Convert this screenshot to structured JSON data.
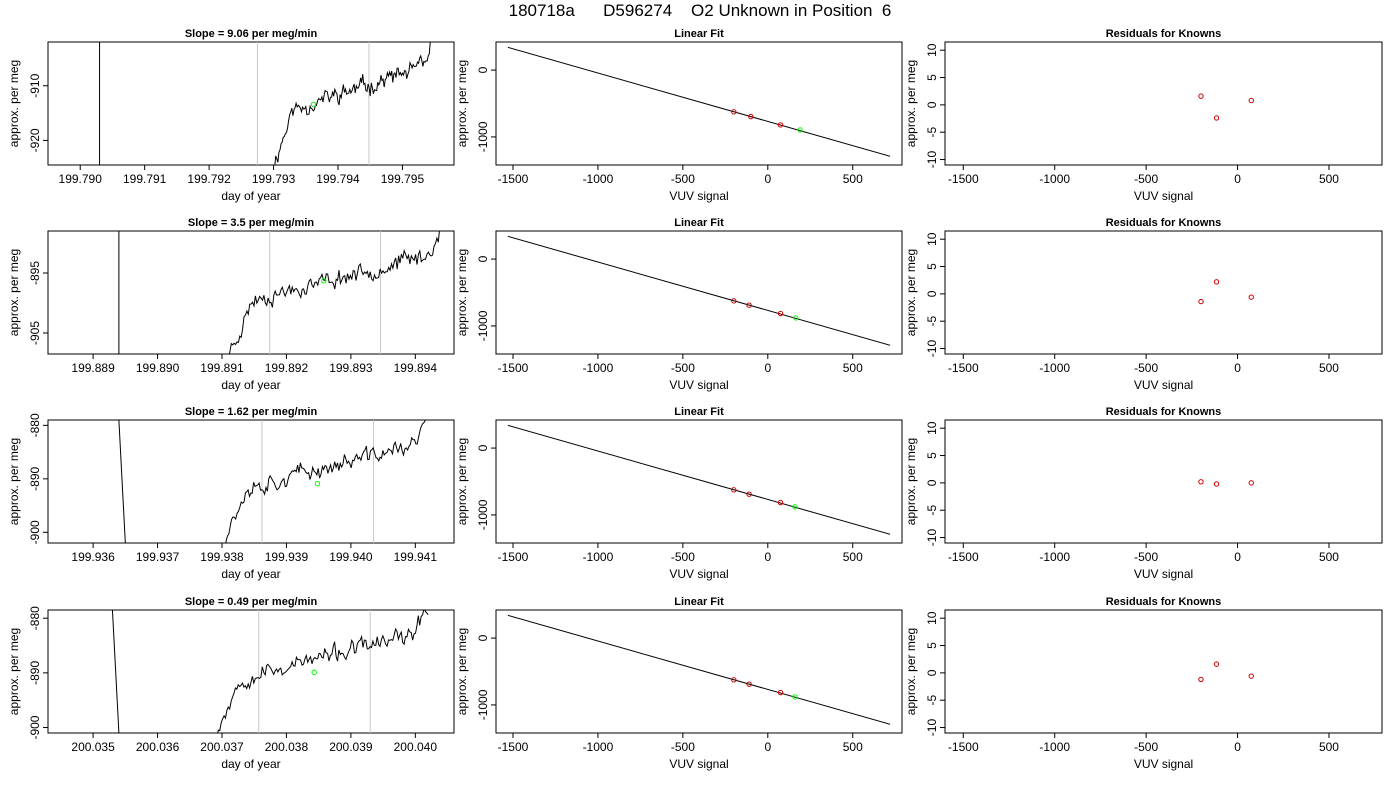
{
  "page": {
    "title": "180718a      D596274    O2 Unknown in Position  6"
  },
  "colors": {
    "frame": "#000000",
    "trace": "#000000",
    "marker_line": "#c8c8c8",
    "unknown_point": "#00ff00",
    "known_point": "#cd0000"
  },
  "chart_data": [
    {
      "type": "line",
      "name": "trace-row-1",
      "title": "Slope =  9.06  per meg/min",
      "xlabel": "day of year",
      "ylabel": "approx. per meg",
      "xlim": [
        199.7895,
        199.7958
      ],
      "ylim": [
        -924.5,
        -902.0
      ],
      "xticks": [
        199.79,
        199.791,
        199.792,
        199.793,
        199.794,
        199.795
      ],
      "xtick_labels": [
        "199.790",
        "199.791",
        "199.792",
        "199.793",
        "199.794",
        "199.795"
      ],
      "yticks": [
        -920,
        -910
      ],
      "ytick_labels": [
        "-920",
        "-910"
      ],
      "segment_high_x": [
        199.7903,
        199.7903
      ],
      "segment_high_y": [
        -902.0,
        -924.5
      ],
      "trace_start": [
        199.793,
        -924.5
      ],
      "trace_end": [
        199.7955,
        -902.0
      ],
      "trace_seed": 11,
      "vlines": [
        199.79275,
        199.79448
      ],
      "unknown_point": {
        "x": 199.79362,
        "y": -913.4
      }
    },
    {
      "type": "scatter",
      "name": "fit-row-1",
      "title": "Linear Fit",
      "xlabel": "VUV signal",
      "ylabel": "approx. per meg",
      "xlim": [
        -1600,
        790
      ],
      "ylim": [
        -1420,
        420
      ],
      "xticks": [
        -1500,
        -1000,
        -500,
        0,
        500
      ],
      "xtick_labels": [
        "-1500",
        "-1000",
        "-500",
        "0",
        "500"
      ],
      "yticks": [
        -1000,
        0
      ],
      "ytick_labels": [
        "-1000",
        "0"
      ],
      "fit_line": {
        "x": [
          -1530,
          720
        ],
        "y": [
          340,
          -1290
        ]
      },
      "knowns": {
        "x": [
          -200,
          -100,
          75
        ],
        "y": [
          -625,
          -695,
          -820
        ]
      },
      "unknown": {
        "x": 190,
        "y": -895
      }
    },
    {
      "type": "scatter",
      "name": "resid-row-1",
      "title": "Residuals for Knowns",
      "xlabel": "VUV signal",
      "ylabel": "approx. per meg",
      "xlim": [
        -1600,
        790
      ],
      "ylim": [
        -11,
        11.5
      ],
      "xticks": [
        -1500,
        -1000,
        -500,
        0,
        500
      ],
      "xtick_labels": [
        "-1500",
        "-1000",
        "-500",
        "0",
        "500"
      ],
      "yticks": [
        -10,
        -5,
        0,
        5,
        10
      ],
      "ytick_labels": [
        "-10",
        "-5",
        "0",
        "5",
        "10"
      ],
      "knowns": {
        "x": [
          -200,
          -115,
          75
        ],
        "y": [
          1.6,
          -2.4,
          0.8
        ]
      }
    },
    {
      "type": "line",
      "name": "trace-row-2",
      "title": "Slope =  3.5  per meg/min",
      "xlabel": "day of year",
      "ylabel": "approx. per meg",
      "xlim": [
        199.8883,
        199.8946
      ],
      "ylim": [
        -908.5,
        -888.0
      ],
      "xticks": [
        199.889,
        199.89,
        199.891,
        199.892,
        199.893,
        199.894
      ],
      "xtick_labels": [
        "199.889",
        "199.890",
        "199.891",
        "199.892",
        "199.893",
        "199.894"
      ],
      "yticks": [
        -905,
        -895
      ],
      "ytick_labels": [
        "-905",
        "-895"
      ],
      "segment_high_x": [
        199.8894,
        199.8894
      ],
      "segment_high_y": [
        -888.0,
        -908.5
      ],
      "trace_start": [
        199.8911,
        -908.5
      ],
      "trace_end": [
        199.8944,
        -888.0
      ],
      "trace_seed": 23,
      "vlines": [
        199.89174,
        199.89346
      ],
      "unknown_point": {
        "x": 199.89258,
        "y": -896.3
      }
    },
    {
      "type": "scatter",
      "name": "fit-row-2",
      "title": "Linear Fit",
      "xlabel": "VUV signal",
      "ylabel": "approx. per meg",
      "xlim": [
        -1600,
        790
      ],
      "ylim": [
        -1420,
        420
      ],
      "xticks": [
        -1500,
        -1000,
        -500,
        0,
        500
      ],
      "xtick_labels": [
        "-1500",
        "-1000",
        "-500",
        "0",
        "500"
      ],
      "yticks": [
        -1000,
        0
      ],
      "ytick_labels": [
        "-1000",
        "0"
      ],
      "fit_line": {
        "x": [
          -1530,
          720
        ],
        "y": [
          340,
          -1290
        ]
      },
      "knowns": {
        "x": [
          -200,
          -110,
          75
        ],
        "y": [
          -625,
          -690,
          -815
        ]
      },
      "unknown": {
        "x": 165,
        "y": -880
      }
    },
    {
      "type": "scatter",
      "name": "resid-row-2",
      "title": "Residuals for Knowns",
      "xlabel": "VUV signal",
      "ylabel": "approx. per meg",
      "xlim": [
        -1600,
        790
      ],
      "ylim": [
        -11,
        11.5
      ],
      "xticks": [
        -1500,
        -1000,
        -500,
        0,
        500
      ],
      "xtick_labels": [
        "-1500",
        "-1000",
        "-500",
        "0",
        "500"
      ],
      "yticks": [
        -10,
        -5,
        0,
        5,
        10
      ],
      "ytick_labels": [
        "-10",
        "-5",
        "0",
        "5",
        "10"
      ],
      "knowns": {
        "x": [
          -200,
          -115,
          75
        ],
        "y": [
          -1.4,
          2.2,
          -0.6
        ]
      }
    },
    {
      "type": "line",
      "name": "trace-row-3",
      "title": "Slope =  1.62  per meg/min",
      "xlabel": "day of year",
      "ylabel": "approx. per meg",
      "xlim": [
        199.9353,
        199.9416
      ],
      "ylim": [
        -902.0,
        -879.0
      ],
      "xticks": [
        199.936,
        199.937,
        199.938,
        199.939,
        199.94,
        199.941
      ],
      "xtick_labels": [
        "199.936",
        "199.937",
        "199.938",
        "199.939",
        "199.940",
        "199.941"
      ],
      "yticks": [
        -900,
        -890,
        -880
      ],
      "ytick_labels": [
        "-900",
        "-890",
        "-880"
      ],
      "segment_high_x": [
        199.9364,
        199.9365
      ],
      "segment_high_y": [
        -879.0,
        -902.0
      ],
      "trace_start": [
        199.938,
        -902.0
      ],
      "trace_end": [
        199.9412,
        -879.0
      ],
      "trace_seed": 37,
      "vlines": [
        199.93862,
        199.94035
      ],
      "unknown_point": {
        "x": 199.93948,
        "y": -890.9
      }
    },
    {
      "type": "scatter",
      "name": "fit-row-3",
      "title": "Linear Fit",
      "xlabel": "VUV signal",
      "ylabel": "approx. per meg",
      "xlim": [
        -1600,
        790
      ],
      "ylim": [
        -1420,
        420
      ],
      "xticks": [
        -1500,
        -1000,
        -500,
        0,
        500
      ],
      "xtick_labels": [
        "-1500",
        "-1000",
        "-500",
        "0",
        "500"
      ],
      "yticks": [
        -1000,
        0
      ],
      "ytick_labels": [
        "-1000",
        "0"
      ],
      "fit_line": {
        "x": [
          -1530,
          720
        ],
        "y": [
          340,
          -1290
        ]
      },
      "knowns": {
        "x": [
          -200,
          -110,
          75
        ],
        "y": [
          -625,
          -690,
          -815
        ]
      },
      "unknown": {
        "x": 160,
        "y": -878
      }
    },
    {
      "type": "scatter",
      "name": "resid-row-3",
      "title": "Residuals for Knowns",
      "xlabel": "VUV signal",
      "ylabel": "approx. per meg",
      "xlim": [
        -1600,
        790
      ],
      "ylim": [
        -11,
        11.5
      ],
      "xticks": [
        -1500,
        -1000,
        -500,
        0,
        500
      ],
      "xtick_labels": [
        "-1500",
        "-1000",
        "-500",
        "0",
        "500"
      ],
      "yticks": [
        -10,
        -5,
        0,
        5,
        10
      ],
      "ytick_labels": [
        "-10",
        "-5",
        "0",
        "5",
        "10"
      ],
      "knowns": {
        "x": [
          -200,
          -115,
          75
        ],
        "y": [
          0.2,
          -0.2,
          0.0
        ]
      }
    },
    {
      "type": "line",
      "name": "trace-row-4",
      "title": "Slope =  0.49  per meg/min",
      "xlabel": "day of year",
      "ylabel": "approx. per meg",
      "xlim": [
        200.0343,
        200.0406
      ],
      "ylim": [
        -901.0,
        -878.5
      ],
      "xticks": [
        200.035,
        200.036,
        200.037,
        200.038,
        200.039,
        200.04
      ],
      "xtick_labels": [
        "200.035",
        "200.036",
        "200.037",
        "200.038",
        "200.039",
        "200.040"
      ],
      "yticks": [
        -900,
        -890,
        -880
      ],
      "ytick_labels": [
        "-900",
        "-890",
        "-880"
      ],
      "segment_high_x": [
        200.0353,
        200.0354
      ],
      "segment_high_y": [
        -878.5,
        -901.0
      ],
      "trace_start": [
        200.0369,
        -901.0
      ],
      "trace_end": [
        200.0402,
        -878.5
      ],
      "trace_seed": 53,
      "vlines": [
        200.03757,
        200.0393
      ],
      "unknown_point": {
        "x": 200.03843,
        "y": -889.9
      }
    },
    {
      "type": "scatter",
      "name": "fit-row-4",
      "title": "Linear Fit",
      "xlabel": "VUV signal",
      "ylabel": "approx. per meg",
      "xlim": [
        -1600,
        790
      ],
      "ylim": [
        -1420,
        420
      ],
      "xticks": [
        -1500,
        -1000,
        -500,
        0,
        500
      ],
      "xtick_labels": [
        "-1500",
        "-1000",
        "-500",
        "0",
        "500"
      ],
      "yticks": [
        -1000,
        0
      ],
      "ytick_labels": [
        "-1000",
        "0"
      ],
      "fit_line": {
        "x": [
          -1530,
          720
        ],
        "y": [
          340,
          -1290
        ]
      },
      "knowns": {
        "x": [
          -200,
          -110,
          75
        ],
        "y": [
          -625,
          -690,
          -815
        ]
      },
      "unknown": {
        "x": 160,
        "y": -880
      }
    },
    {
      "type": "scatter",
      "name": "resid-row-4",
      "title": "Residuals for Knowns",
      "xlabel": "VUV signal",
      "ylabel": "approx. per meg",
      "xlim": [
        -1600,
        790
      ],
      "ylim": [
        -11,
        11.5
      ],
      "xticks": [
        -1500,
        -1000,
        -500,
        0,
        500
      ],
      "xtick_labels": [
        "-1500",
        "-1000",
        "-500",
        "0",
        "500"
      ],
      "yticks": [
        -10,
        -5,
        0,
        5,
        10
      ],
      "ytick_labels": [
        "-10",
        "-5",
        "0",
        "5",
        "10"
      ],
      "knowns": {
        "x": [
          -200,
          -115,
          75
        ],
        "y": [
          -1.2,
          1.6,
          -0.6
        ]
      }
    }
  ]
}
